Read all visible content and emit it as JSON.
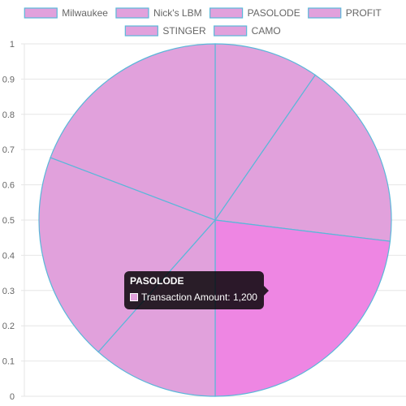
{
  "chart_data": {
    "type": "pie",
    "legend_position": "top",
    "grid": true,
    "ylim": [
      0,
      1
    ],
    "y_ticks": [
      "0",
      "0.1",
      "0.2",
      "0.3",
      "0.4",
      "0.5",
      "0.6",
      "0.7",
      "0.8",
      "0.9",
      "1"
    ],
    "categories": [
      "Milwaukee",
      "Nick's LBM",
      "PASOLODE",
      "PROFIT",
      "STINGER",
      "CAMO"
    ],
    "series": [
      {
        "name": "Transaction Amount",
        "values": [
          500,
          900,
          1200,
          600,
          1000,
          1000
        ]
      }
    ],
    "colors": {
      "slice_fill": "#e1a1dc",
      "slice_border": "#5ab7d9",
      "highlight_fill": "#ee86e3"
    },
    "highlighted_index": 2
  },
  "tooltip": {
    "title": "PASOLODE",
    "series_label": "Transaction Amount",
    "value_text": "1,200"
  }
}
